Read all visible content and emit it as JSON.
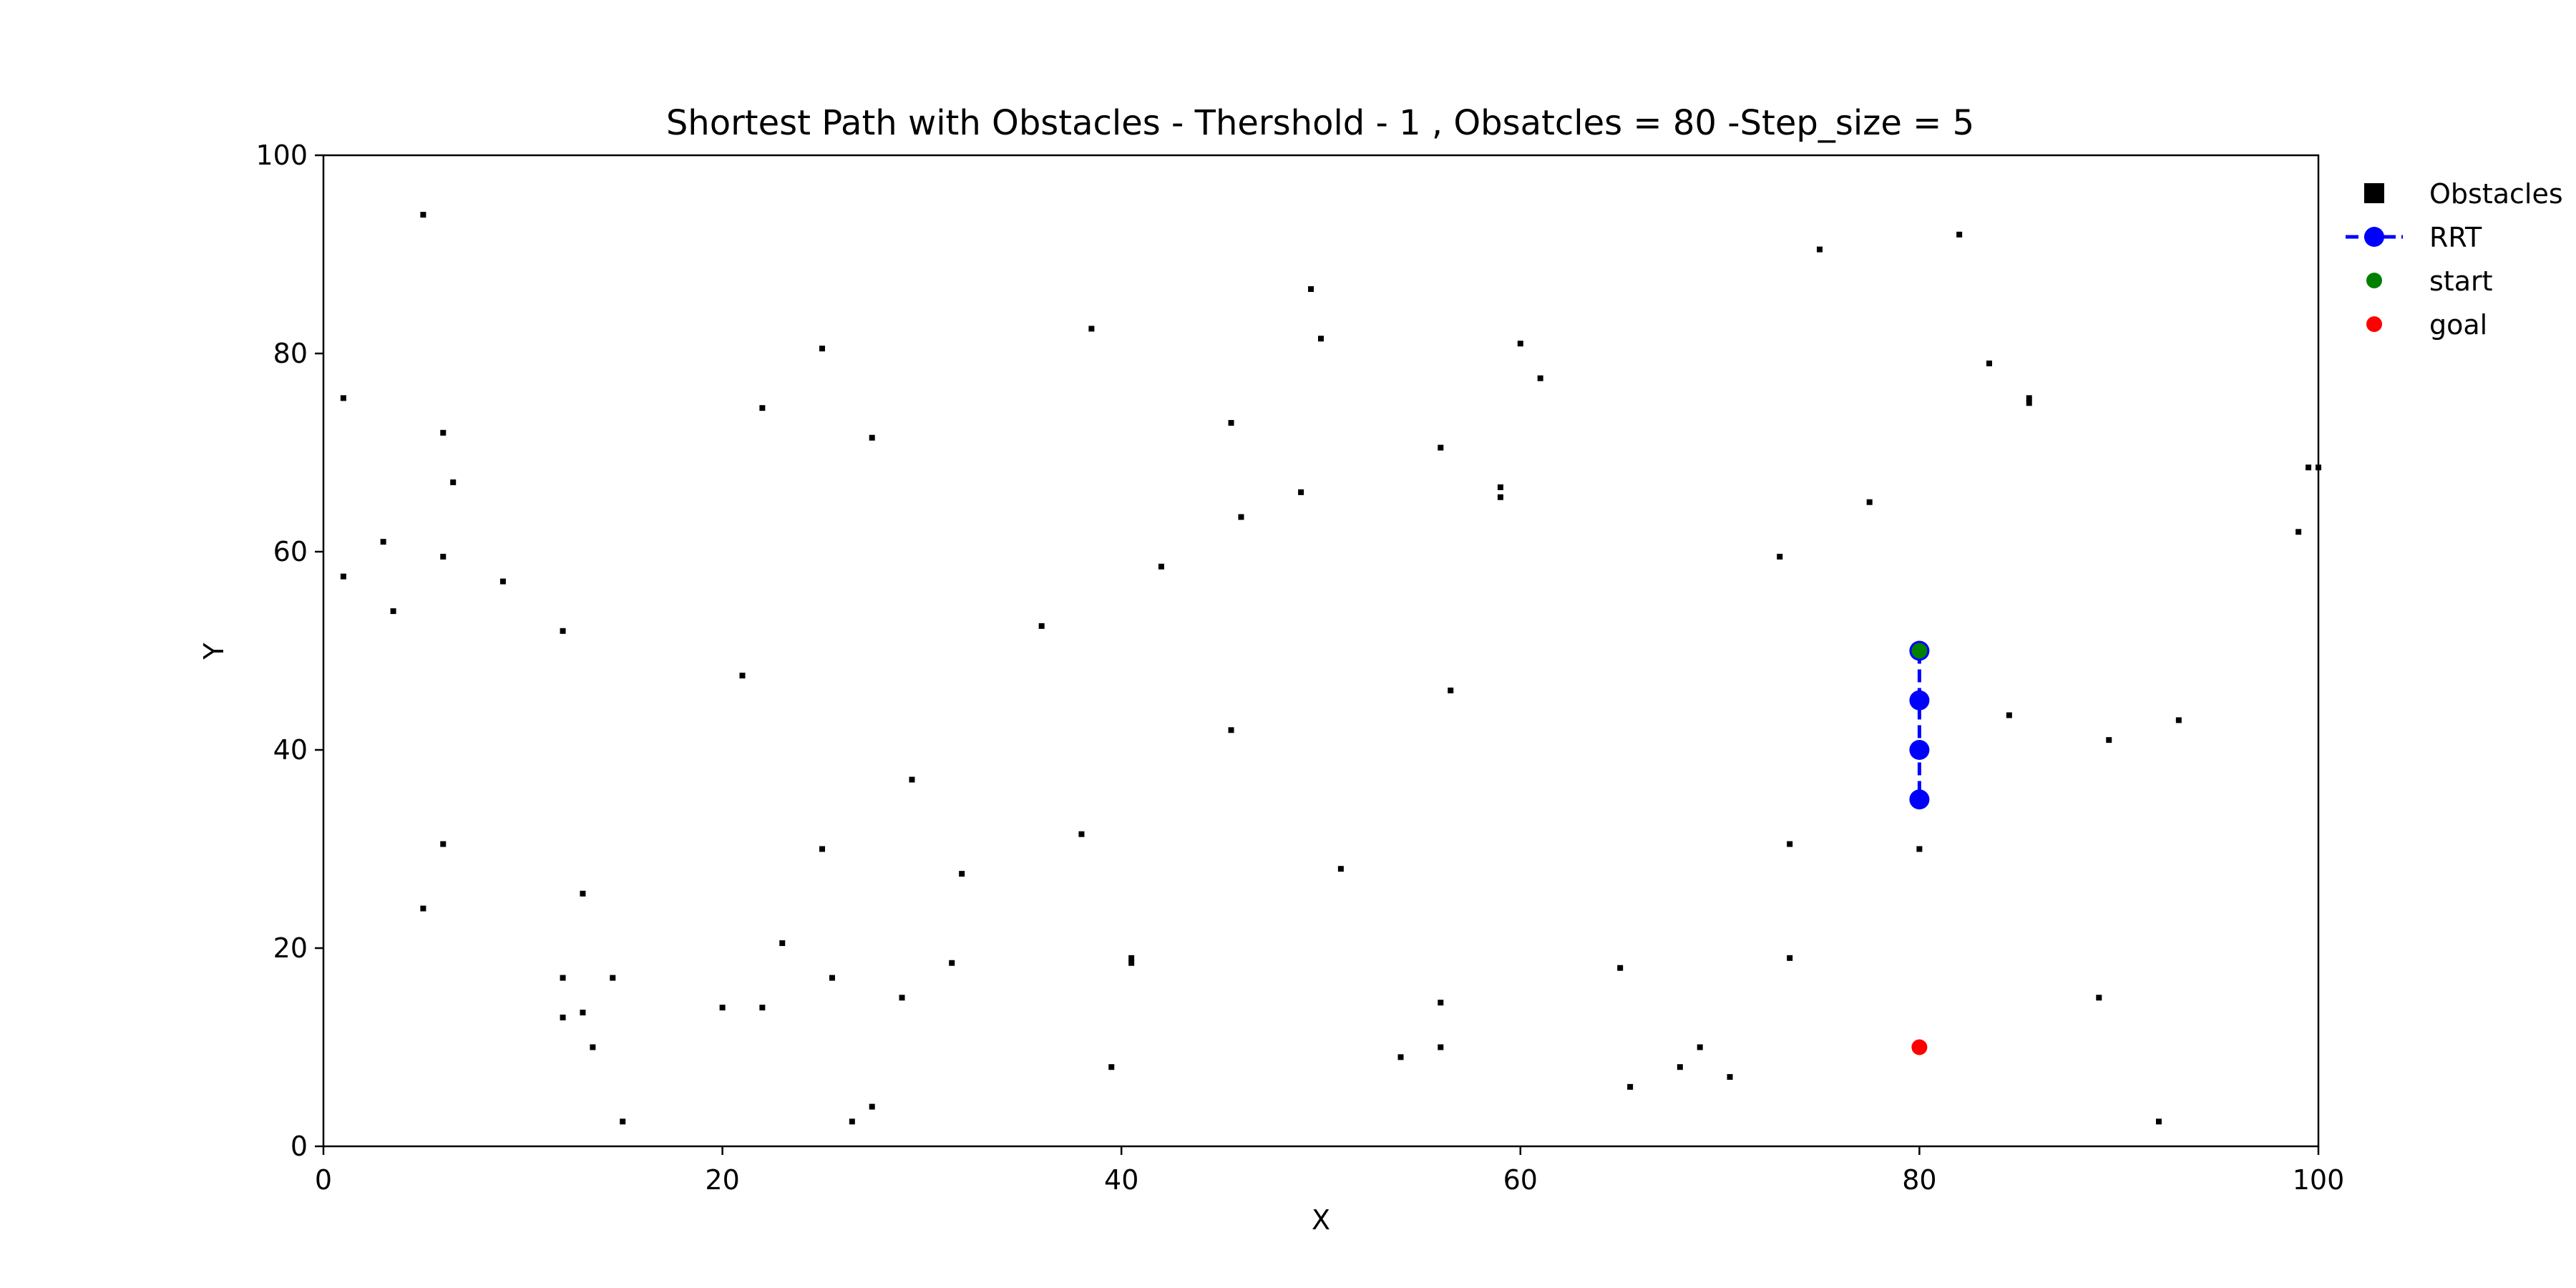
{
  "chart_data": {
    "type": "scatter",
    "title": "Shortest Path with Obstacles - Thershold - 1 , Obsatcles = 80 -Step_size = 5",
    "xlabel": "X",
    "ylabel": "Y",
    "xlim": [
      0,
      100
    ],
    "ylim": [
      0,
      100
    ],
    "xticks": [
      0,
      20,
      40,
      60,
      80,
      100
    ],
    "yticks": [
      0,
      20,
      40,
      60,
      80,
      100
    ],
    "grid": false,
    "legend_position": "outside-top-right",
    "series": [
      {
        "name": "Obstacles",
        "marker": "square",
        "color": "#000000",
        "x": [
          5,
          1,
          6,
          6.5,
          3,
          6,
          1,
          3.5,
          9,
          12,
          21,
          6,
          5,
          13,
          12,
          12,
          13,
          13.5,
          15,
          14.5,
          20,
          22,
          22,
          25,
          25,
          23,
          25.5,
          27.5,
          26.5,
          29,
          27.5,
          29.5,
          32,
          31.5,
          36,
          38.5,
          38,
          40.5,
          40.5,
          39.5,
          42,
          45.5,
          45.5,
          46,
          49,
          49.5,
          50,
          51,
          56,
          56.5,
          56,
          59,
          59,
          60,
          61,
          54,
          56,
          65,
          65.5,
          68,
          69,
          70.5,
          73,
          73.5,
          73.5,
          75,
          77.5,
          80,
          82,
          83.5,
          84.5,
          85.5,
          85.5,
          89,
          89.5,
          92,
          93,
          99,
          99.5,
          100
        ],
        "y": [
          94,
          75.5,
          72,
          67,
          61,
          59.5,
          57.5,
          54,
          57,
          52,
          47.5,
          30.5,
          24,
          25.5,
          17,
          13,
          13.5,
          10,
          2.5,
          17,
          14,
          14,
          74.5,
          80.5,
          30,
          20.5,
          17,
          71.5,
          2.5,
          15,
          4,
          37,
          27.5,
          18.5,
          52.5,
          82.5,
          31.5,
          18.5,
          19,
          8,
          58.5,
          73,
          42,
          63.5,
          66,
          86.5,
          81.5,
          28,
          70.5,
          46,
          14.5,
          65.5,
          66.5,
          81,
          77.5,
          9,
          10,
          18,
          6,
          8,
          10,
          7,
          59.5,
          30.5,
          19,
          90.5,
          65,
          30,
          92,
          79,
          43.5,
          75.5,
          75,
          15,
          41,
          2.5,
          43,
          62,
          68.5,
          68.5
        ]
      },
      {
        "name": "RRT",
        "marker": "circle",
        "line": "dashed",
        "color": "#0000ff",
        "x": [
          80,
          80,
          80,
          80
        ],
        "y": [
          50,
          45,
          40,
          35
        ]
      },
      {
        "name": "start",
        "marker": "circle",
        "color": "#008000",
        "x": [
          80
        ],
        "y": [
          50
        ]
      },
      {
        "name": "goal",
        "marker": "circle",
        "color": "#ff0000",
        "x": [
          80
        ],
        "y": [
          10
        ]
      }
    ]
  }
}
